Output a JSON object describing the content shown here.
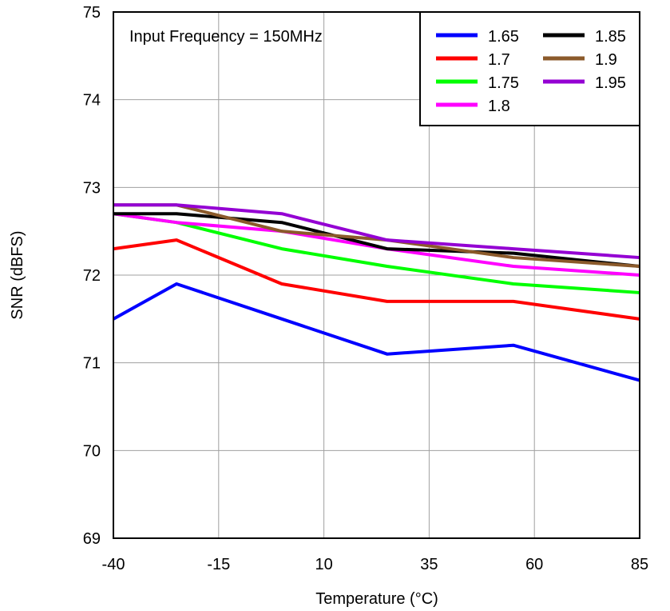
{
  "chart_data": {
    "type": "line",
    "title": "",
    "annotation": "Input Frequency = 150MHz",
    "xlabel": "Temperature (°C)",
    "ylabel": "SNR (dBFS)",
    "xlim": [
      -40,
      85
    ],
    "ylim": [
      69,
      75
    ],
    "xticks": [
      "-40",
      "-15",
      "10",
      "35",
      "60",
      "85"
    ],
    "yticks": [
      "69",
      "70",
      "71",
      "72",
      "73",
      "74",
      "75"
    ],
    "grid": true,
    "legend_position": "top-right",
    "x": [
      -40,
      -25,
      0,
      25,
      55,
      85
    ],
    "series": [
      {
        "name": "1.65",
        "color": "#0000ff",
        "values": [
          71.5,
          71.9,
          71.5,
          71.1,
          71.2,
          70.8
        ]
      },
      {
        "name": "1.7",
        "color": "#ff0000",
        "values": [
          72.3,
          72.4,
          71.9,
          71.7,
          71.7,
          71.5
        ]
      },
      {
        "name": "1.75",
        "color": "#00ff00",
        "values": [
          72.7,
          72.6,
          72.3,
          72.1,
          71.9,
          71.8
        ]
      },
      {
        "name": "1.8",
        "color": "#ff00ff",
        "values": [
          72.7,
          72.6,
          72.5,
          72.3,
          72.1,
          72.0
        ]
      },
      {
        "name": "1.85",
        "color": "#000000",
        "values": [
          72.7,
          72.7,
          72.6,
          72.3,
          72.25,
          72.1
        ]
      },
      {
        "name": "1.9",
        "color": "#8b5a2b",
        "values": [
          72.8,
          72.8,
          72.5,
          72.4,
          72.2,
          72.1
        ]
      },
      {
        "name": "1.95",
        "color": "#9400d3",
        "values": [
          72.8,
          72.8,
          72.7,
          72.4,
          72.3,
          72.2
        ]
      }
    ]
  }
}
